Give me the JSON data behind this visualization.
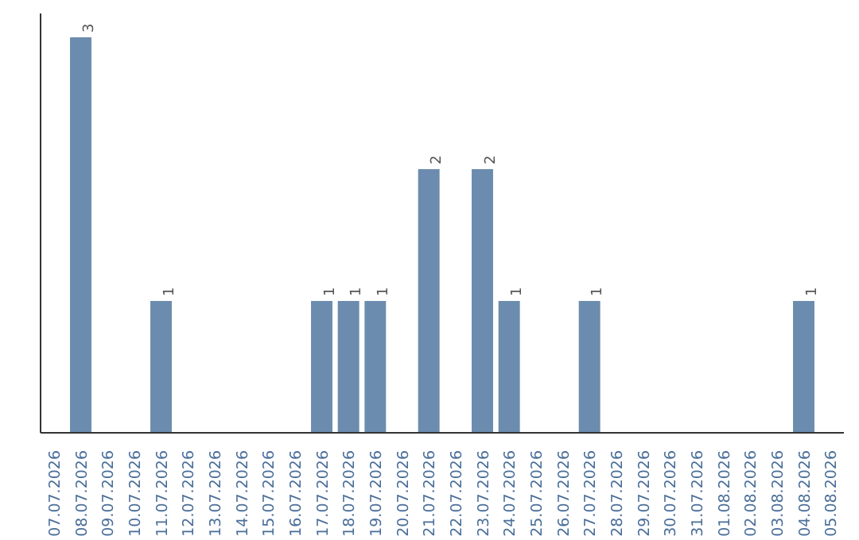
{
  "chart_data": {
    "type": "bar",
    "categories": [
      "07.07.2026",
      "08.07.2026",
      "09.07.2026",
      "10.07.2026",
      "11.07.2026",
      "12.07.2026",
      "13.07.2026",
      "14.07.2026",
      "15.07.2026",
      "16.07.2026",
      "17.07.2026",
      "18.07.2026",
      "19.07.2026",
      "20.07.2026",
      "21.07.2026",
      "22.07.2026",
      "23.07.2026",
      "24.07.2026",
      "25.07.2026",
      "26.07.2026",
      "27.07.2026",
      "28.07.2026",
      "29.07.2026",
      "30.07.2026",
      "31.07.2026",
      "01.08.2026",
      "02.08.2026",
      "03.08.2026",
      "04.08.2026",
      "05.08.2026"
    ],
    "values": [
      0,
      3,
      0,
      0,
      1,
      0,
      0,
      0,
      0,
      0,
      1,
      1,
      1,
      0,
      2,
      0,
      2,
      1,
      0,
      0,
      1,
      0,
      0,
      0,
      0,
      0,
      0,
      0,
      1,
      0
    ],
    "value_labels": [
      null,
      "3",
      null,
      null,
      "1",
      null,
      null,
      null,
      null,
      null,
      "1",
      "1",
      "1",
      null,
      "2",
      null,
      "2",
      "1",
      null,
      null,
      "1",
      null,
      null,
      null,
      null,
      null,
      null,
      null,
      "1",
      null
    ],
    "color": "#6b8cae",
    "grid": false,
    "tick_labels": "x"
  }
}
